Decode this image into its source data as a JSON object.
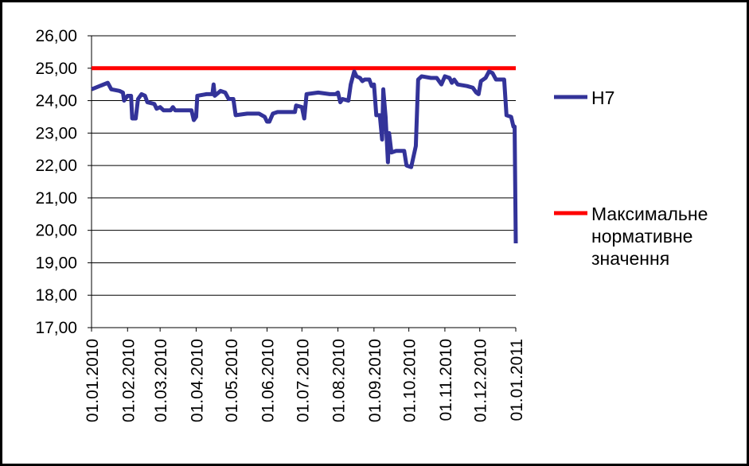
{
  "chart_data": {
    "type": "line",
    "xlim": [
      "01.01.2010",
      "01.01.2011"
    ],
    "xticks": [
      "01.01.2010",
      "01.02.2010",
      "01.03.2010",
      "01.04.2010",
      "01.05.2010",
      "01.06.2010",
      "01.07.2010",
      "01.08.2010",
      "01.09.2010",
      "01.10.2010",
      "01.11.2010",
      "01.12.2010",
      "01.01.2011"
    ],
    "ylim": [
      17,
      26
    ],
    "yticks": [
      {
        "value": 17,
        "label": "17,00"
      },
      {
        "value": 18,
        "label": "18,00"
      },
      {
        "value": 19,
        "label": "19,00"
      },
      {
        "value": 20,
        "label": "20,00"
      },
      {
        "value": 21,
        "label": "21,00"
      },
      {
        "value": 22,
        "label": "22,00"
      },
      {
        "value": 23,
        "label": "23,00"
      },
      {
        "value": 24,
        "label": "24,00"
      },
      {
        "value": 25,
        "label": "25,00"
      },
      {
        "value": 26,
        "label": "26,00"
      }
    ],
    "grid": true,
    "legend": "right",
    "series": [
      {
        "name": "Н7",
        "color": "#333399",
        "x": [
          "01.01.2010",
          "08.01.2010",
          "15.01.2010",
          "18.01.2010",
          "25.01.2010",
          "28.01.2010",
          "29.01.2010",
          "01.02.2010",
          "04.02.2010",
          "05.02.2010",
          "08.02.2010",
          "10.02.2010",
          "13.02.2010",
          "16.02.2010",
          "18.02.2010",
          "24.02.2010",
          "26.02.2010",
          "01.03.2010",
          "04.03.2010",
          "10.03.2010",
          "12.03.2010",
          "14.03.2010",
          "28.03.2010",
          "30.03.2010",
          "01.04.2010",
          "02.04.2010",
          "10.04.2010",
          "15.04.2010",
          "16.04.2010",
          "17.04.2010",
          "22.04.2010",
          "26.04.2010",
          "29.04.2010",
          "03.05.2010",
          "05.05.2010",
          "15.05.2010",
          "25.05.2010",
          "30.05.2010",
          "01.06.2010",
          "03.06.2010",
          "06.06.2010",
          "10.06.2010",
          "25.06.2010",
          "26.06.2010",
          "01.07.2010",
          "03.07.2010",
          "05.07.2010",
          "15.07.2010",
          "25.07.2010",
          "30.07.2010",
          "01.08.2010",
          "03.08.2010",
          "05.08.2010",
          "10.08.2010",
          "12.08.2010",
          "15.08.2010",
          "17.08.2010",
          "20.08.2010",
          "22.08.2010",
          "24.08.2010",
          "28.08.2010",
          "30.08.2010",
          "01.09.2010",
          "03.09.2010",
          "06.09.2010",
          "08.09.2010",
          "09.09.2010",
          "11.09.2010",
          "13.09.2010",
          "14.09.2010",
          "16.09.2010",
          "20.09.2010",
          "27.09.2010",
          "29.09.2010",
          "03.10.2010",
          "07.10.2010",
          "09.10.2010",
          "12.10.2010",
          "20.10.2010",
          "25.10.2010",
          "29.10.2010",
          "01.11.2010",
          "05.11.2010",
          "07.11.2010",
          "09.11.2010",
          "12.11.2010",
          "20.11.2010",
          "25.11.2010",
          "28.11.2010",
          "30.11.2010",
          "02.12.2010",
          "06.12.2010",
          "09.12.2010",
          "12.12.2010",
          "15.12.2010",
          "22.12.2010",
          "24.12.2010",
          "28.12.2010",
          "30.12.2010",
          "31.12.2010",
          "01.01.2011"
        ],
        "values": [
          24.35,
          24.45,
          24.55,
          24.35,
          24.3,
          24.25,
          24.0,
          24.15,
          24.15,
          23.45,
          23.45,
          24.05,
          24.2,
          24.15,
          23.95,
          23.9,
          23.75,
          23.8,
          23.7,
          23.7,
          23.8,
          23.7,
          23.7,
          23.4,
          23.5,
          24.15,
          24.2,
          24.2,
          24.5,
          24.15,
          24.3,
          24.25,
          24.05,
          24.05,
          23.55,
          23.6,
          23.6,
          23.5,
          23.35,
          23.35,
          23.6,
          23.65,
          23.65,
          23.85,
          23.8,
          23.45,
          24.2,
          24.25,
          24.2,
          24.2,
          24.25,
          23.95,
          24.05,
          24.0,
          24.5,
          24.9,
          24.75,
          24.7,
          24.6,
          24.65,
          24.65,
          24.45,
          24.5,
          23.55,
          23.55,
          22.8,
          24.35,
          23.5,
          22.1,
          23.0,
          22.4,
          22.45,
          22.45,
          22.0,
          21.95,
          22.6,
          24.65,
          24.75,
          24.7,
          24.7,
          24.5,
          24.75,
          24.7,
          24.55,
          24.65,
          24.5,
          24.45,
          24.4,
          24.25,
          24.2,
          24.6,
          24.7,
          24.9,
          24.85,
          24.65,
          24.65,
          23.55,
          23.5,
          23.2,
          23.2,
          19.6
        ]
      },
      {
        "name": "Максимальне нормативне значення",
        "color": "#ff0000",
        "x": [
          "01.01.2010",
          "01.01.2011"
        ],
        "values": [
          25,
          25
        ]
      }
    ]
  }
}
